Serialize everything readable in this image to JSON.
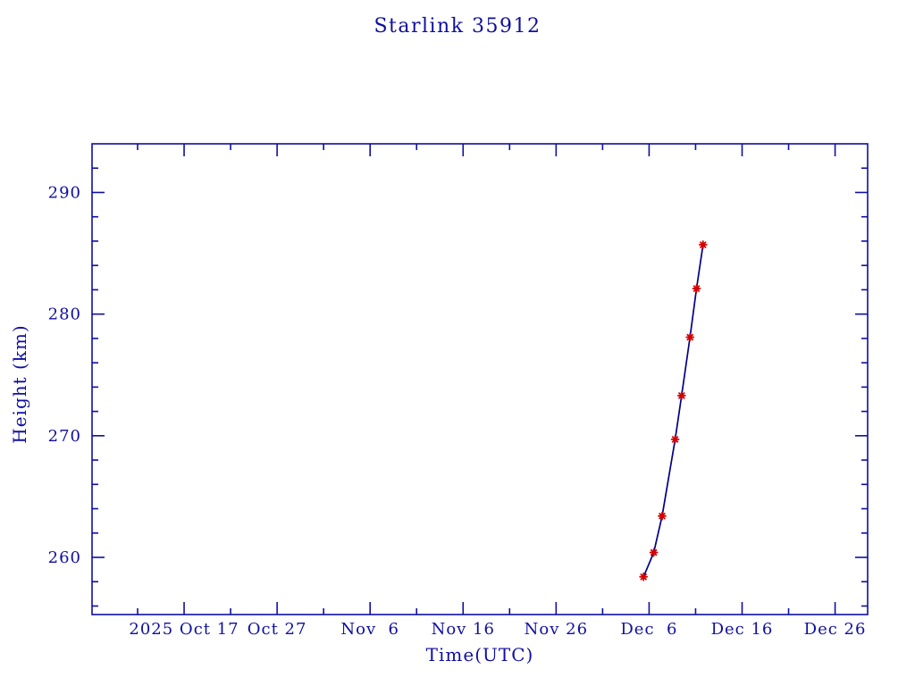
{
  "page": {
    "background_color": "#ffffff",
    "accent_color": "#0f0fa0"
  },
  "chart_data": {
    "type": "line",
    "title": "Starlink 35912",
    "xlabel": "Time(UTC)",
    "ylabel": "Height (km)",
    "grid": false,
    "legend": "none",
    "axis_color": "#0f0fa0",
    "line_color": "#00008b",
    "marker_color": "#d40000",
    "marker_style": "asterisk",
    "x_axis": {
      "unit": "days since 2025 Oct 7 (UTC)",
      "range": [
        0.1,
        83.5
      ],
      "major_ticks": [
        {
          "value": 10,
          "label": "2025 Oct 17"
        },
        {
          "value": 20,
          "label": "Oct 27"
        },
        {
          "value": 30,
          "label": "Nov  6"
        },
        {
          "value": 40,
          "label": "Nov 16"
        },
        {
          "value": 50,
          "label": "Nov 26"
        },
        {
          "value": 60,
          "label": "Dec  6"
        },
        {
          "value": 70,
          "label": "Dec 16"
        },
        {
          "value": 80,
          "label": "Dec 26"
        }
      ],
      "minor_ticks": [
        5,
        15,
        25,
        35,
        45,
        55,
        65,
        75
      ]
    },
    "y_axis": {
      "unit": "km",
      "range": [
        255.3,
        294.0
      ],
      "major_ticks": [
        {
          "value": 260,
          "label": "260"
        },
        {
          "value": 270,
          "label": "270"
        },
        {
          "value": 280,
          "label": "280"
        },
        {
          "value": 290,
          "label": "290"
        }
      ],
      "minor_ticks": [
        256,
        258,
        262,
        264,
        266,
        268,
        272,
        274,
        276,
        278,
        282,
        284,
        286,
        288,
        292
      ]
    },
    "series": [
      {
        "name": "height",
        "points": [
          {
            "x": 59.4,
            "y": 258.4,
            "approx_date": "2025 Dec 5.4"
          },
          {
            "x": 60.5,
            "y": 260.4,
            "approx_date": "2025 Dec 6.5"
          },
          {
            "x": 61.4,
            "y": 263.4,
            "approx_date": "2025 Dec 7.4"
          },
          {
            "x": 62.8,
            "y": 269.7,
            "approx_date": "2025 Dec 8.8"
          },
          {
            "x": 63.5,
            "y": 273.3,
            "approx_date": "2025 Dec 9.5"
          },
          {
            "x": 64.4,
            "y": 278.1,
            "approx_date": "2025 Dec 10.4"
          },
          {
            "x": 65.1,
            "y": 282.1,
            "approx_date": "2025 Dec 11.1"
          },
          {
            "x": 65.8,
            "y": 285.7,
            "approx_date": "2025 Dec 11.8"
          }
        ]
      }
    ]
  }
}
